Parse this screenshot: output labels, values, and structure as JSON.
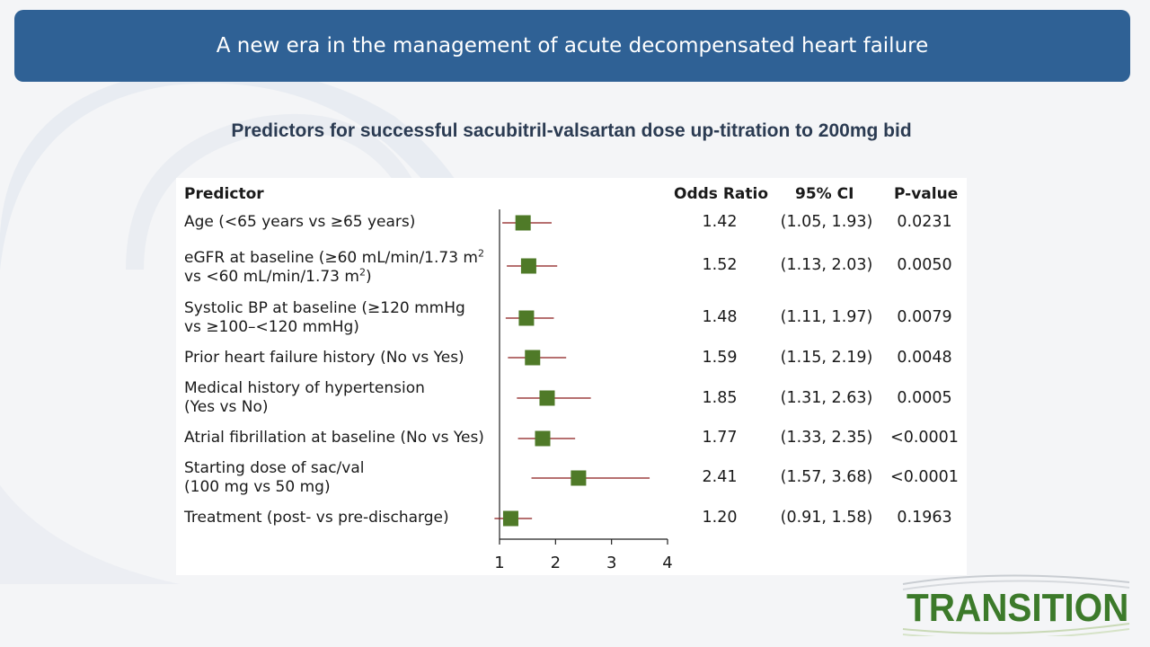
{
  "header": {
    "title": "A new era in the management of acute decompensated heart failure"
  },
  "subtitle": "Predictors for successful sacubitril-valsartan dose up-titration to 200mg bid",
  "table": {
    "columns": [
      "Predictor",
      "Odds Ratio",
      "95% CI",
      "P-value"
    ],
    "rows": [
      {
        "predictor_lines": [
          "Age (<65 years vs ≥65 years)"
        ],
        "odds_ratio": "1.42",
        "ci": "(1.05, 1.93)",
        "p_value": "0.0231"
      },
      {
        "predictor_lines": [
          "eGFR at baseline (≥60 mL/min/1.73 m",
          "vs <60 mL/min/1.73 m",
          ")"
        ],
        "odds_ratio": "1.52",
        "ci": "(1.13, 2.03)",
        "p_value": "0.0050"
      },
      {
        "predictor_lines": [
          "Systolic BP at baseline (≥120 mmHg",
          "vs ≥100–<120 mmHg)"
        ],
        "odds_ratio": "1.48",
        "ci": "(1.11, 1.97)",
        "p_value": "0.0079"
      },
      {
        "predictor_lines": [
          "Prior heart failure history (No vs Yes)"
        ],
        "odds_ratio": "1.59",
        "ci": "(1.15, 2.19)",
        "p_value": "0.0048"
      },
      {
        "predictor_lines": [
          "Medical history of hypertension",
          "(Yes vs No)"
        ],
        "odds_ratio": "1.85",
        "ci": "(1.31, 2.63)",
        "p_value": "0.0005"
      },
      {
        "predictor_lines": [
          "Atrial fibrillation at baseline (No vs Yes)"
        ],
        "odds_ratio": "1.77",
        "ci": "(1.33, 2.35)",
        "p_value": "<0.0001"
      },
      {
        "predictor_lines": [
          "Starting dose of sac/val",
          "(100 mg vs 50 mg)"
        ],
        "odds_ratio": "2.41",
        "ci": "(1.57, 3.68)",
        "p_value": "<0.0001"
      },
      {
        "predictor_lines": [
          "Treatment (post- vs pre-discharge)"
        ],
        "odds_ratio": "1.20",
        "ci": "(0.91, 1.58)",
        "p_value": "0.1963"
      }
    ],
    "superscript": "2"
  },
  "chart_data": {
    "type": "forest",
    "x_ticks": [
      1,
      2,
      3,
      4
    ],
    "xlim": [
      1,
      4
    ],
    "reference_line": 1,
    "series": [
      {
        "or": 1.42,
        "lo": 1.05,
        "hi": 1.93
      },
      {
        "or": 1.52,
        "lo": 1.13,
        "hi": 2.03
      },
      {
        "or": 1.48,
        "lo": 1.11,
        "hi": 1.97
      },
      {
        "or": 1.59,
        "lo": 1.15,
        "hi": 2.19
      },
      {
        "or": 1.85,
        "lo": 1.31,
        "hi": 2.63
      },
      {
        "or": 1.77,
        "lo": 1.33,
        "hi": 2.35
      },
      {
        "or": 2.41,
        "lo": 1.57,
        "hi": 3.68
      },
      {
        "or": 1.2,
        "lo": 0.91,
        "hi": 1.58
      }
    ],
    "marker_color": "#4f7a28",
    "ci_color": "#8b1a1a"
  },
  "logo": {
    "text": "TRANSITION"
  }
}
